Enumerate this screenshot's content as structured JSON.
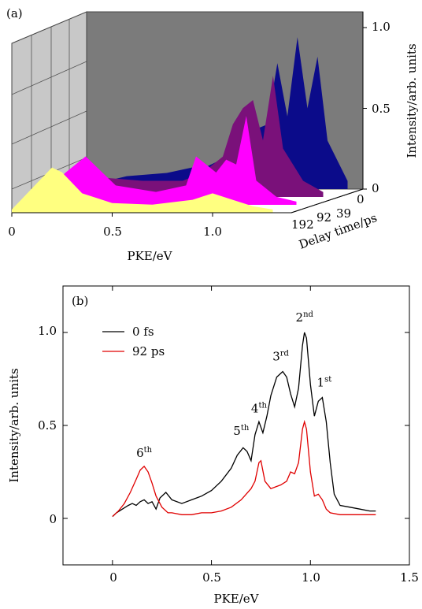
{
  "panel_a": {
    "panel_label": "(a)",
    "xlabel": "PKE/eV",
    "x_ticks": [
      "0",
      "0.5",
      "1.0"
    ],
    "z_ticks": [
      "0",
      "0.5",
      "1.0"
    ],
    "zlabel": "Intensity/arb. units",
    "delay_ticks": [
      "0",
      "39",
      "92",
      "192"
    ],
    "delay_label": "Delay time/ps",
    "colors": {
      "delay_0": "#0b0b8a",
      "delay_39": "#7a117a",
      "delay_92": "#ff00ff",
      "delay_192": "#ffff80",
      "back_wall": "#7b7b7b",
      "side_wall": "#c8c8c8"
    }
  },
  "panel_b": {
    "panel_label": "(b)",
    "xlabel": "PKE/eV",
    "ylabel": "Intensity/arb. units",
    "x_ticks": [
      "0",
      "0.5",
      "1.0",
      "1.5"
    ],
    "y_ticks": [
      "0",
      "0.5",
      "1.0"
    ],
    "legend": [
      {
        "label": "0 fs",
        "color": "#000000"
      },
      {
        "label": "92 ps",
        "color": "#e00000"
      }
    ],
    "peak_labels": [
      {
        "base": "6",
        "sup": "th",
        "x": 0.16,
        "y": 0.33
      },
      {
        "base": "5",
        "sup": "th",
        "x": 0.65,
        "y": 0.45
      },
      {
        "base": "4",
        "sup": "th",
        "x": 0.74,
        "y": 0.57
      },
      {
        "base": "3",
        "sup": "rd",
        "x": 0.85,
        "y": 0.85
      },
      {
        "base": "2",
        "sup": "nd",
        "x": 0.97,
        "y": 1.06
      },
      {
        "base": "1",
        "sup": "st",
        "x": 1.07,
        "y": 0.71
      }
    ]
  },
  "chart_data": [
    {
      "type": "area",
      "xlabel": "PKE/eV",
      "ylabel": "Intensity/arb. units",
      "zlabel": "Delay time/ps",
      "xlim": [
        0,
        1.35
      ],
      "ylim": [
        0,
        1.0
      ],
      "series": [
        {
          "name": "0",
          "x": [
            0,
            0.2,
            0.4,
            0.55,
            0.6,
            0.7,
            0.8,
            0.9,
            0.95,
            1.0,
            1.05,
            1.1,
            1.15,
            1.2,
            1.3
          ],
          "values": [
            0.02,
            0.08,
            0.1,
            0.14,
            0.14,
            0.2,
            0.35,
            0.4,
            0.78,
            0.45,
            0.94,
            0.5,
            0.82,
            0.3,
            0.05
          ]
        },
        {
          "name": "39",
          "x": [
            0,
            0.2,
            0.4,
            0.6,
            0.7,
            0.8,
            0.85,
            0.9,
            0.95,
            1.0,
            1.05,
            1.1,
            1.2,
            1.3
          ],
          "values": [
            0.02,
            0.12,
            0.1,
            0.1,
            0.15,
            0.25,
            0.45,
            0.55,
            0.6,
            0.35,
            0.75,
            0.3,
            0.1,
            0.03
          ]
        },
        {
          "name": "92",
          "x": [
            0,
            0.15,
            0.25,
            0.4,
            0.6,
            0.75,
            0.8,
            0.9,
            0.95,
            1.0,
            1.05,
            1.1,
            1.2,
            1.3
          ],
          "values": [
            0.02,
            0.2,
            0.3,
            0.12,
            0.08,
            0.12,
            0.3,
            0.2,
            0.28,
            0.25,
            0.55,
            0.15,
            0.05,
            0.02
          ]
        },
        {
          "name": "192",
          "x": [
            0,
            0.1,
            0.2,
            0.25,
            0.35,
            0.5,
            0.7,
            0.9,
            1.0,
            1.1,
            1.2,
            1.3
          ],
          "values": [
            0.02,
            0.15,
            0.28,
            0.25,
            0.12,
            0.06,
            0.05,
            0.08,
            0.12,
            0.08,
            0.04,
            0.02
          ]
        }
      ]
    },
    {
      "type": "line",
      "xlabel": "PKE/eV",
      "ylabel": "Intensity/arb. units",
      "xlim": [
        -0.25,
        1.5
      ],
      "ylim": [
        -0.25,
        1.25
      ],
      "series": [
        {
          "name": "0 fs",
          "color": "#000000",
          "x": [
            0.0,
            0.02,
            0.05,
            0.08,
            0.1,
            0.12,
            0.14,
            0.16,
            0.18,
            0.2,
            0.22,
            0.24,
            0.27,
            0.3,
            0.35,
            0.4,
            0.45,
            0.5,
            0.55,
            0.6,
            0.63,
            0.66,
            0.68,
            0.7,
            0.72,
            0.74,
            0.76,
            0.78,
            0.8,
            0.83,
            0.86,
            0.88,
            0.9,
            0.92,
            0.94,
            0.96,
            0.97,
            0.98,
            1.0,
            1.02,
            1.04,
            1.06,
            1.08,
            1.1,
            1.12,
            1.15,
            1.2,
            1.25,
            1.3,
            1.33
          ],
          "values": [
            0.01,
            0.03,
            0.05,
            0.07,
            0.08,
            0.07,
            0.09,
            0.1,
            0.08,
            0.09,
            0.05,
            0.11,
            0.14,
            0.1,
            0.08,
            0.1,
            0.12,
            0.15,
            0.2,
            0.27,
            0.34,
            0.38,
            0.36,
            0.31,
            0.45,
            0.52,
            0.46,
            0.55,
            0.66,
            0.76,
            0.79,
            0.76,
            0.67,
            0.6,
            0.7,
            0.93,
            1.0,
            0.97,
            0.72,
            0.55,
            0.63,
            0.65,
            0.52,
            0.3,
            0.13,
            0.07,
            0.06,
            0.05,
            0.04,
            0.04
          ]
        },
        {
          "name": "92 ps",
          "color": "#e00000",
          "x": [
            0.0,
            0.03,
            0.06,
            0.09,
            0.12,
            0.14,
            0.16,
            0.18,
            0.2,
            0.22,
            0.25,
            0.28,
            0.3,
            0.35,
            0.4,
            0.45,
            0.5,
            0.55,
            0.6,
            0.65,
            0.7,
            0.72,
            0.74,
            0.75,
            0.77,
            0.8,
            0.85,
            0.88,
            0.9,
            0.92,
            0.94,
            0.96,
            0.97,
            0.98,
            1.0,
            1.02,
            1.04,
            1.06,
            1.08,
            1.1,
            1.15,
            1.2,
            1.25,
            1.3,
            1.33
          ],
          "values": [
            0.01,
            0.04,
            0.08,
            0.14,
            0.21,
            0.26,
            0.28,
            0.25,
            0.19,
            0.12,
            0.06,
            0.03,
            0.03,
            0.02,
            0.02,
            0.03,
            0.03,
            0.04,
            0.06,
            0.1,
            0.16,
            0.2,
            0.3,
            0.31,
            0.2,
            0.16,
            0.18,
            0.2,
            0.25,
            0.24,
            0.3,
            0.48,
            0.52,
            0.48,
            0.25,
            0.12,
            0.13,
            0.1,
            0.05,
            0.03,
            0.02,
            0.02,
            0.02,
            0.02,
            0.02
          ]
        }
      ]
    }
  ]
}
